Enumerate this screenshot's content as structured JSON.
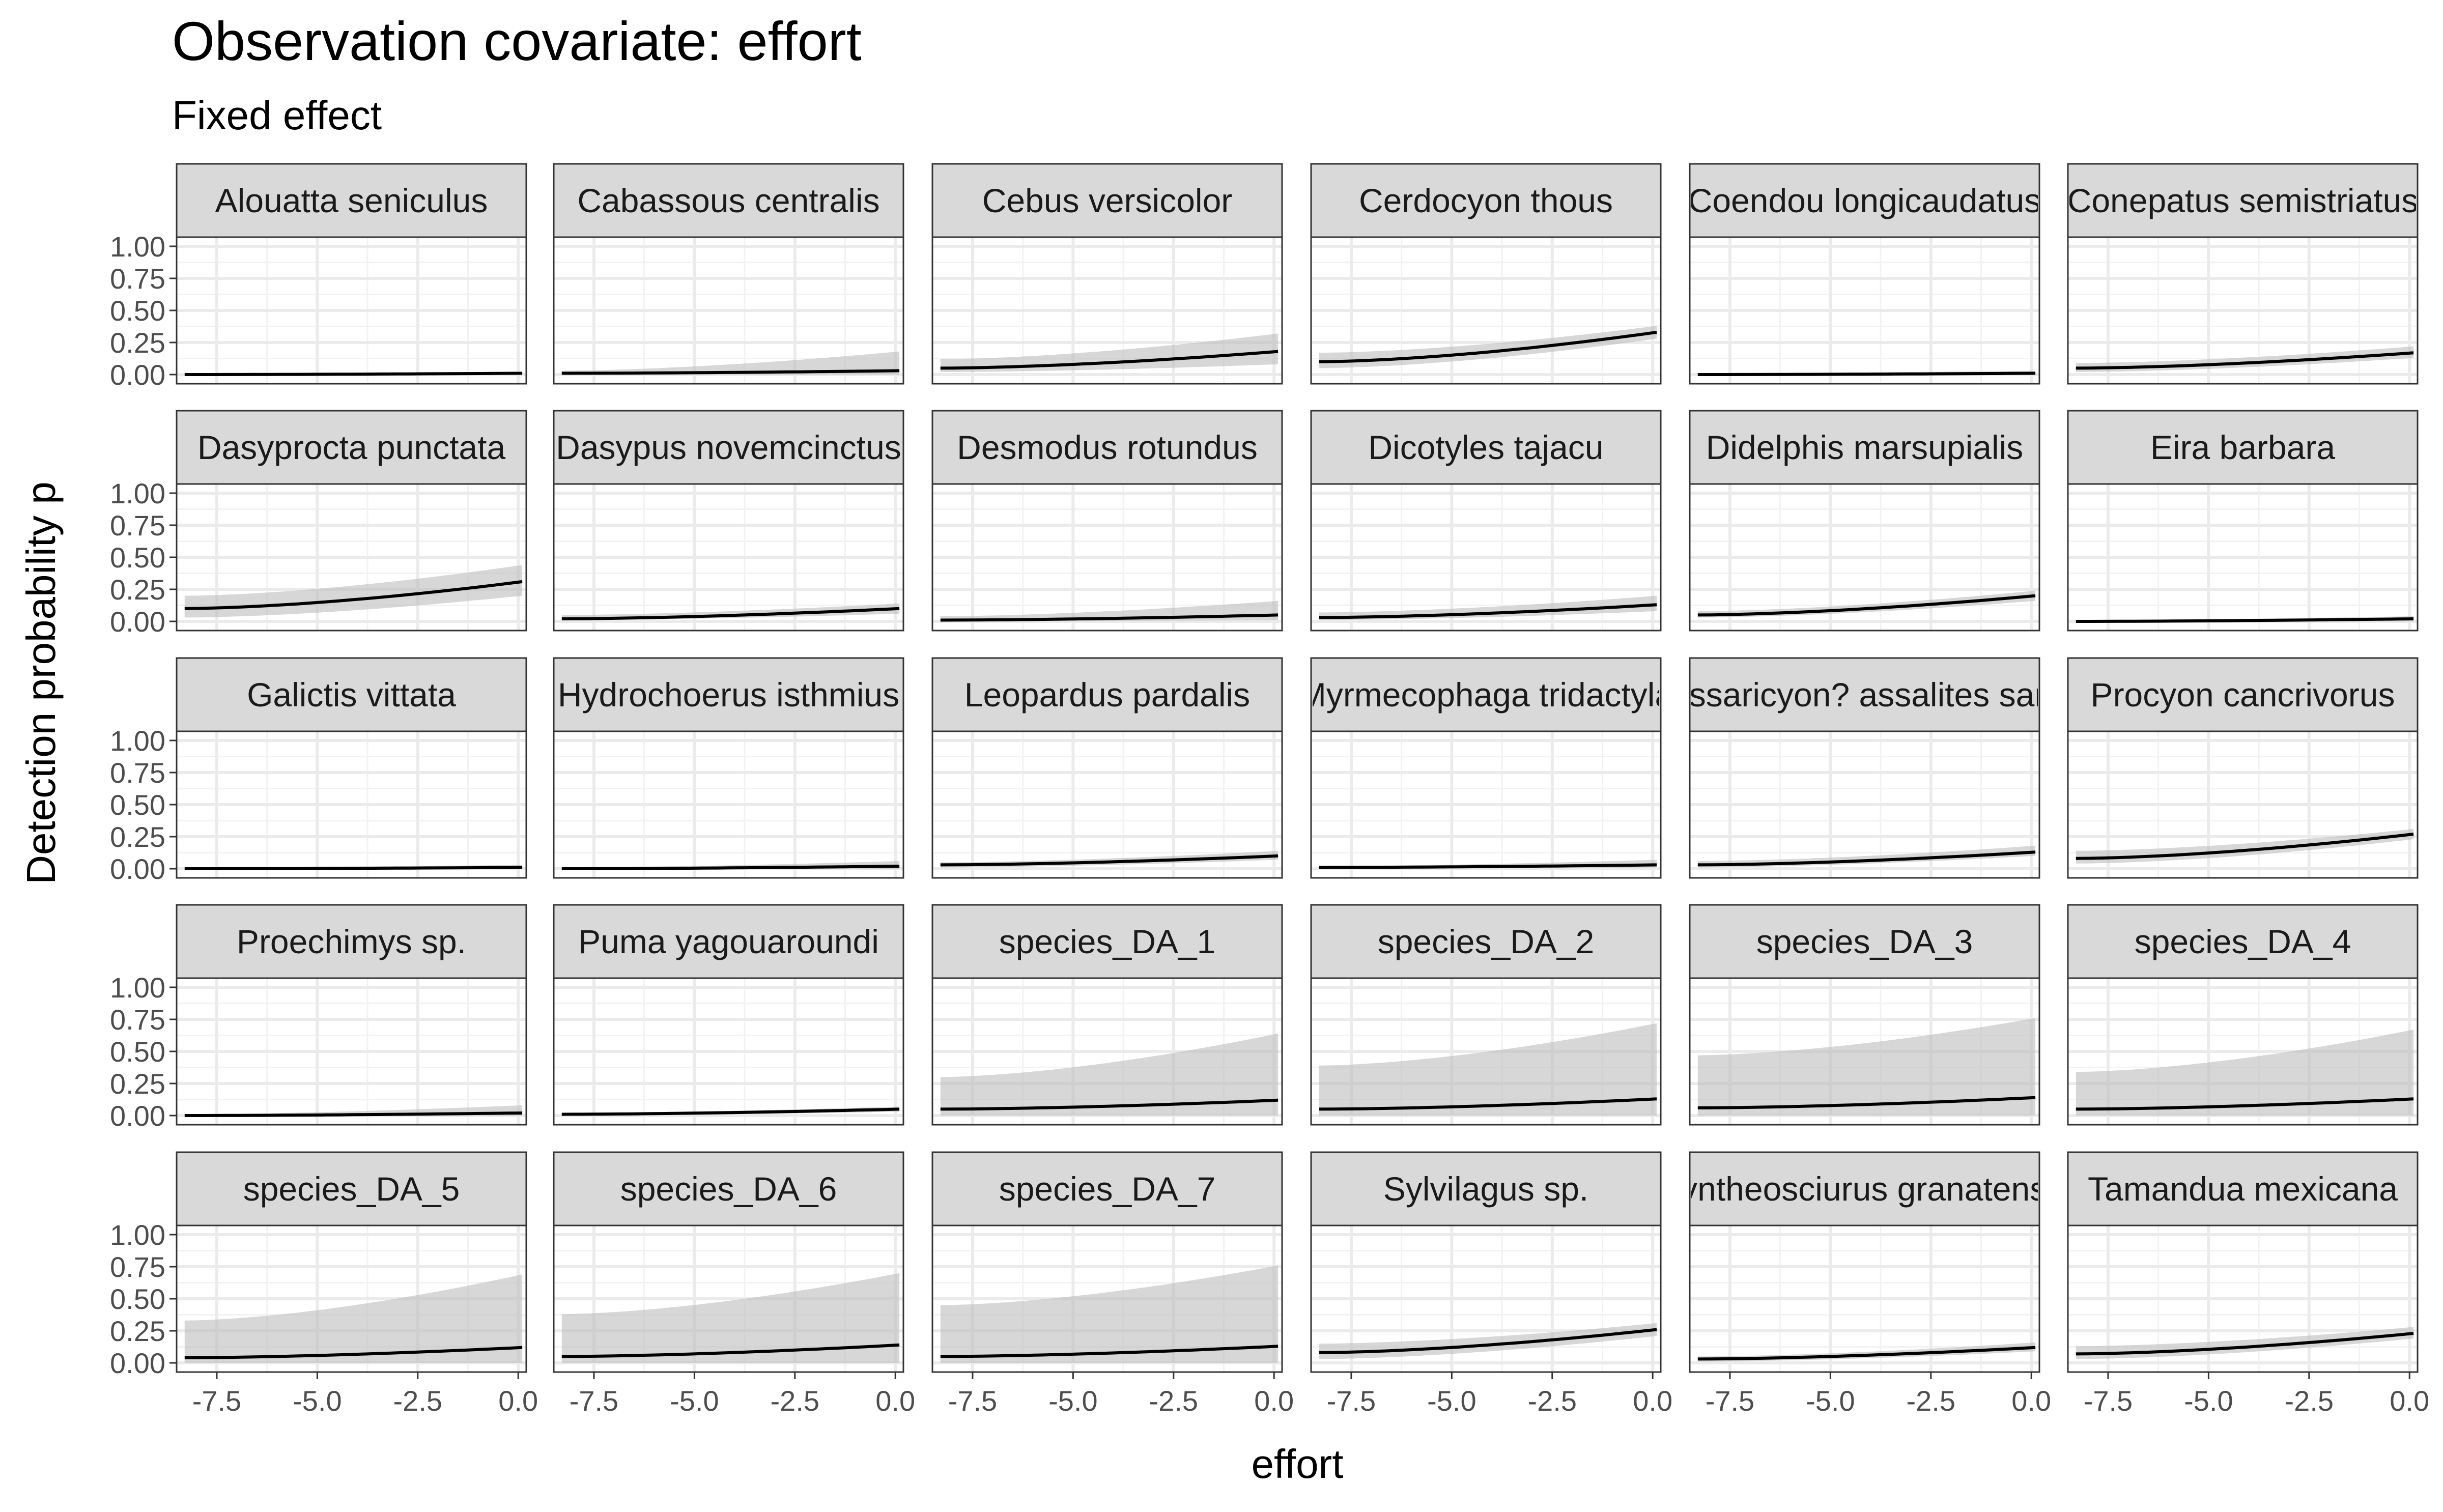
{
  "header": {
    "title": "Observation covariate: effort",
    "subtitle": "Fixed effect"
  },
  "chart_data": {
    "type": "line",
    "facet_layout": "6 columns x 5 rows, shared axes",
    "xlabel": "effort",
    "ylabel": "Detection probability p",
    "xlim": [
      -8.5,
      0.2
    ],
    "ylim": [
      0,
      1
    ],
    "x_ticks": [
      "-7.5",
      "-5.0",
      "-2.5",
      "0.0"
    ],
    "y_ticks": [
      "0.00",
      "0.25",
      "0.50",
      "0.75",
      "1.00"
    ],
    "grid": true,
    "band": "grey confidence ribbon around line",
    "x": [
      -8.3,
      0.1
    ],
    "panels": [
      {
        "label": "Alouatta seniculus",
        "line": [
          0.0,
          0.01
        ],
        "lower": [
          0.0,
          0.0
        ],
        "upper": [
          0.01,
          0.02
        ]
      },
      {
        "label": "Cabassous centralis",
        "line": [
          0.01,
          0.03
        ],
        "lower": [
          0.0,
          0.0
        ],
        "upper": [
          0.03,
          0.18
        ]
      },
      {
        "label": "Cebus versicolor",
        "line": [
          0.05,
          0.18
        ],
        "lower": [
          0.02,
          0.08
        ],
        "upper": [
          0.12,
          0.32
        ]
      },
      {
        "label": "Cerdocyon thous",
        "line": [
          0.1,
          0.33
        ],
        "lower": [
          0.05,
          0.28
        ],
        "upper": [
          0.17,
          0.38
        ]
      },
      {
        "label": "Coendou longicaudatus",
        "line": [
          0.0,
          0.01
        ],
        "lower": [
          0.0,
          0.0
        ],
        "upper": [
          0.01,
          0.03
        ]
      },
      {
        "label": "Conepatus semistriatus",
        "line": [
          0.05,
          0.17
        ],
        "lower": [
          0.02,
          0.13
        ],
        "upper": [
          0.09,
          0.22
        ]
      },
      {
        "label": "Dasyprocta punctata",
        "line": [
          0.1,
          0.31
        ],
        "lower": [
          0.03,
          0.2
        ],
        "upper": [
          0.2,
          0.44
        ]
      },
      {
        "label": "Dasypus novemcinctus",
        "line": [
          0.02,
          0.1
        ],
        "lower": [
          0.01,
          0.06
        ],
        "upper": [
          0.05,
          0.14
        ]
      },
      {
        "label": "Desmodus rotundus",
        "line": [
          0.01,
          0.05
        ],
        "lower": [
          0.0,
          0.01
        ],
        "upper": [
          0.04,
          0.16
        ]
      },
      {
        "label": "Dicotyles tajacu",
        "line": [
          0.03,
          0.13
        ],
        "lower": [
          0.01,
          0.08
        ],
        "upper": [
          0.07,
          0.2
        ]
      },
      {
        "label": "Didelphis marsupialis",
        "line": [
          0.05,
          0.2
        ],
        "lower": [
          0.03,
          0.16
        ],
        "upper": [
          0.08,
          0.24
        ]
      },
      {
        "label": "Eira barbara",
        "line": [
          0.0,
          0.02
        ],
        "lower": [
          0.0,
          0.0
        ],
        "upper": [
          0.01,
          0.04
        ]
      },
      {
        "label": "Galictis vittata",
        "line": [
          0.0,
          0.01
        ],
        "lower": [
          0.0,
          0.0
        ],
        "upper": [
          0.01,
          0.03
        ]
      },
      {
        "label": "Hydrochoerus isthmius",
        "line": [
          0.0,
          0.02
        ],
        "lower": [
          0.0,
          0.0
        ],
        "upper": [
          0.01,
          0.06
        ]
      },
      {
        "label": "Leopardus pardalis",
        "line": [
          0.03,
          0.1
        ],
        "lower": [
          0.01,
          0.07
        ],
        "upper": [
          0.05,
          0.14
        ]
      },
      {
        "label": "Myrmecophaga tridactyla",
        "line": [
          0.01,
          0.03
        ],
        "lower": [
          0.0,
          0.01
        ],
        "upper": [
          0.02,
          0.07
        ]
      },
      {
        "label": "Nasuella/Bassaricyon? assalites sanctaemartae",
        "line": [
          0.03,
          0.13
        ],
        "lower": [
          0.01,
          0.1
        ],
        "upper": [
          0.06,
          0.18
        ]
      },
      {
        "label": "Procyon cancrivorus",
        "line": [
          0.08,
          0.27
        ],
        "lower": [
          0.04,
          0.23
        ],
        "upper": [
          0.14,
          0.31
        ]
      },
      {
        "label": "Proechimys sp.",
        "line": [
          0.0,
          0.02
        ],
        "lower": [
          0.0,
          0.0
        ],
        "upper": [
          0.01,
          0.08
        ]
      },
      {
        "label": "Puma yagouaroundi",
        "line": [
          0.01,
          0.05
        ],
        "lower": [
          0.0,
          0.03
        ],
        "upper": [
          0.02,
          0.07
        ]
      },
      {
        "label": "species_DA_1",
        "line": [
          0.05,
          0.12
        ],
        "lower": [
          0.0,
          0.0
        ],
        "upper": [
          0.3,
          0.64
        ]
      },
      {
        "label": "species_DA_2",
        "line": [
          0.05,
          0.13
        ],
        "lower": [
          0.0,
          0.0
        ],
        "upper": [
          0.39,
          0.72
        ]
      },
      {
        "label": "species_DA_3",
        "line": [
          0.06,
          0.14
        ],
        "lower": [
          0.0,
          0.0
        ],
        "upper": [
          0.47,
          0.76
        ]
      },
      {
        "label": "species_DA_4",
        "line": [
          0.05,
          0.13
        ],
        "lower": [
          0.0,
          0.0
        ],
        "upper": [
          0.34,
          0.67
        ]
      },
      {
        "label": "species_DA_5",
        "line": [
          0.04,
          0.12
        ],
        "lower": [
          0.0,
          0.0
        ],
        "upper": [
          0.33,
          0.69
        ]
      },
      {
        "label": "species_DA_6",
        "line": [
          0.05,
          0.14
        ],
        "lower": [
          0.0,
          0.0
        ],
        "upper": [
          0.38,
          0.7
        ]
      },
      {
        "label": "species_DA_7",
        "line": [
          0.05,
          0.13
        ],
        "lower": [
          0.0,
          0.0
        ],
        "upper": [
          0.45,
          0.76
        ]
      },
      {
        "label": "Sylvilagus sp.",
        "line": [
          0.08,
          0.26
        ],
        "lower": [
          0.03,
          0.21
        ],
        "upper": [
          0.15,
          0.31
        ]
      },
      {
        "label": "Syntheosciurus granatensis",
        "line": [
          0.03,
          0.12
        ],
        "lower": [
          0.01,
          0.09
        ],
        "upper": [
          0.05,
          0.16
        ]
      },
      {
        "label": "Tamandua mexicana",
        "line": [
          0.07,
          0.23
        ],
        "lower": [
          0.03,
          0.19
        ],
        "upper": [
          0.13,
          0.28
        ]
      }
    ]
  }
}
